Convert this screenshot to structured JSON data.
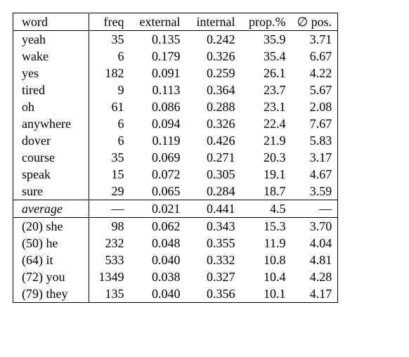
{
  "table": {
    "headers": {
      "word": "word",
      "freq": "freq",
      "external": "external",
      "internal": "internal",
      "prop": "prop.%",
      "pos": "∅ pos."
    },
    "top_rows": [
      {
        "word": "yeah",
        "freq": "35",
        "external": "0.135",
        "internal": "0.242",
        "prop": "35.9",
        "pos": "3.71"
      },
      {
        "word": "wake",
        "freq": "6",
        "external": "0.179",
        "internal": "0.326",
        "prop": "35.4",
        "pos": "6.67"
      },
      {
        "word": "yes",
        "freq": "182",
        "external": "0.091",
        "internal": "0.259",
        "prop": "26.1",
        "pos": "4.22"
      },
      {
        "word": "tired",
        "freq": "9",
        "external": "0.113",
        "internal": "0.364",
        "prop": "23.7",
        "pos": "5.67"
      },
      {
        "word": "oh",
        "freq": "61",
        "external": "0.086",
        "internal": "0.288",
        "prop": "23.1",
        "pos": "2.08"
      },
      {
        "word": "anywhere",
        "freq": "6",
        "external": "0.094",
        "internal": "0.326",
        "prop": "22.4",
        "pos": "7.67"
      },
      {
        "word": "dover",
        "freq": "6",
        "external": "0.119",
        "internal": "0.426",
        "prop": "21.9",
        "pos": "5.83"
      },
      {
        "word": "course",
        "freq": "35",
        "external": "0.069",
        "internal": "0.271",
        "prop": "20.3",
        "pos": "3.17"
      },
      {
        "word": "speak",
        "freq": "15",
        "external": "0.072",
        "internal": "0.305",
        "prop": "19.1",
        "pos": "4.67"
      },
      {
        "word": "sure",
        "freq": "29",
        "external": "0.065",
        "internal": "0.284",
        "prop": "18.7",
        "pos": "3.59"
      }
    ],
    "average_row": {
      "word": "average",
      "freq": "—",
      "external": "0.021",
      "internal": "0.441",
      "prop": "4.5",
      "pos": "—"
    },
    "bottom_rows": [
      {
        "word": "(20) she",
        "freq": "98",
        "external": "0.062",
        "internal": "0.343",
        "prop": "15.3",
        "pos": "3.70"
      },
      {
        "word": "(50) he",
        "freq": "232",
        "external": "0.048",
        "internal": "0.355",
        "prop": "11.9",
        "pos": "4.04"
      },
      {
        "word": "(64) it",
        "freq": "533",
        "external": "0.040",
        "internal": "0.332",
        "prop": "10.8",
        "pos": "4.81"
      },
      {
        "word": "(72) you",
        "freq": "1349",
        "external": "0.038",
        "internal": "0.327",
        "prop": "10.4",
        "pos": "4.28"
      },
      {
        "word": "(79) they",
        "freq": "135",
        "external": "0.040",
        "internal": "0.356",
        "prop": "10.1",
        "pos": "4.17"
      }
    ]
  },
  "style": {
    "font_family": "Times New Roman",
    "font_size_pt": 14,
    "border_color": "#000000",
    "background_color": "#ffffff",
    "text_color": "#000000"
  }
}
